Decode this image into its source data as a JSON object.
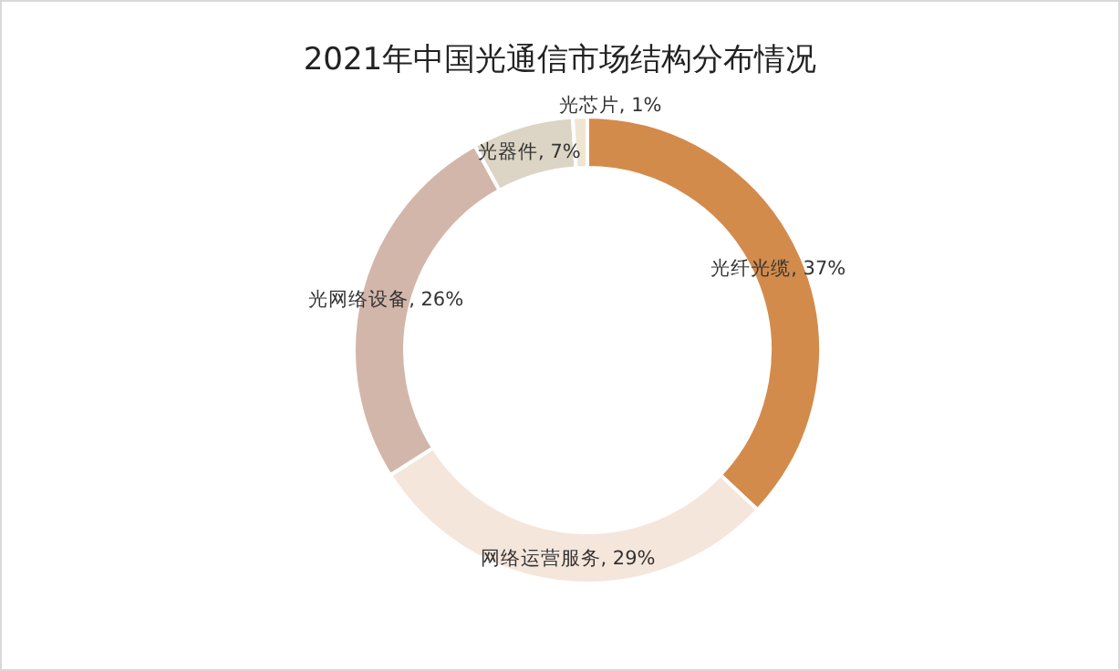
{
  "chart_data": {
    "type": "donut",
    "title": "2021年中国光通信市场结构分布情况",
    "categories": [
      "光纤光缆",
      "网络运营服务",
      "光网络设备",
      "光器件",
      "光芯片"
    ],
    "values": [
      37,
      29,
      26,
      7,
      1
    ],
    "colors": [
      "#d38b4c",
      "#f5e6dc",
      "#d3b6aa",
      "#dcd4c4",
      "#efe5d3"
    ],
    "value_labels": [
      ", 37%",
      ", 29%",
      ", 26%",
      ", 7%",
      ", 1%"
    ],
    "legend": false
  }
}
